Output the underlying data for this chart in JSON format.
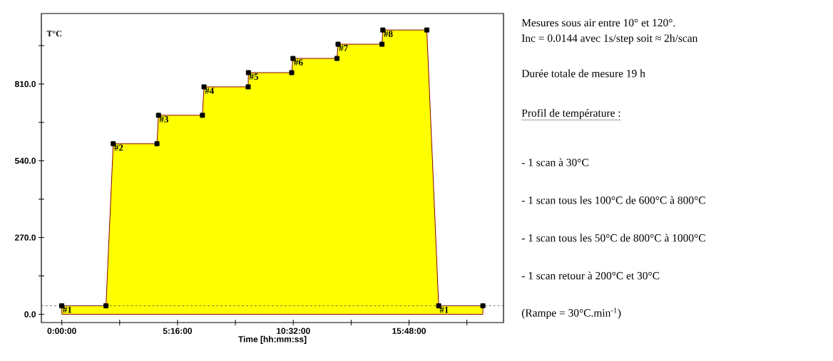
{
  "chart_data": {
    "type": "area",
    "xlabel": "Time  [hh:mm:ss]",
    "ylabel": "T°C",
    "x": [
      0,
      2.01,
      2.34,
      4.33,
      4.4,
      6.4,
      6.47,
      8.48,
      8.49,
      10.46,
      10.52,
      12.52,
      12.57,
      14.57,
      14.61,
      16.61,
      17.15,
      19.16
    ],
    "series": [
      {
        "color": "#ffff00",
        "values": [
          30,
          30,
          600,
          600,
          700,
          700,
          800,
          800,
          850,
          850,
          900,
          900,
          950,
          950,
          1000,
          1000,
          30,
          30
        ]
      }
    ],
    "marker": "square",
    "xlim": [
      -0.93,
      20.1
    ],
    "ylim": [
      -29,
      1058
    ],
    "xticks": [
      {
        "value": 0,
        "label": "0:00:00"
      },
      {
        "value": 2.6333,
        "label": null
      },
      {
        "value": 5.2667,
        "label": "5:16:00"
      },
      {
        "value": 7.9,
        "label": null
      },
      {
        "value": 10.5333,
        "label": "10:32:00"
      },
      {
        "value": 13.1667,
        "label": null
      },
      {
        "value": 15.8,
        "label": "15:48:00"
      },
      {
        "value": 18.4333,
        "label": null
      }
    ],
    "yticks": [
      {
        "value": 0,
        "label": "0.0"
      },
      {
        "value": 135,
        "label": null
      },
      {
        "value": 270,
        "label": "270.0"
      },
      {
        "value": 405,
        "label": null
      },
      {
        "value": 540,
        "label": "540.0"
      },
      {
        "value": 675,
        "label": null
      },
      {
        "value": 810,
        "label": "810.0"
      },
      {
        "value": 945,
        "label": null
      }
    ],
    "ref_lines": [
      {
        "axis": "y",
        "value": 30,
        "color": "#555555",
        "line_style": "dashed"
      }
    ],
    "annotations": [
      {
        "text": "#1",
        "x": 0,
        "y": 30
      },
      {
        "text": "#2",
        "x": 2.34,
        "y": 600
      },
      {
        "text": "#3",
        "x": 4.4,
        "y": 700
      },
      {
        "text": "#4",
        "x": 6.47,
        "y": 800
      },
      {
        "text": "#5",
        "x": 8.49,
        "y": 850
      },
      {
        "text": "#6",
        "x": 10.52,
        "y": 900
      },
      {
        "text": "#7",
        "x": 12.57,
        "y": 950
      },
      {
        "text": "#8",
        "x": 14.61,
        "y": 1000
      },
      {
        "text": "#1",
        "x": 17.15,
        "y": 30
      },
      "Mesures sous air entre 10° et 120°.",
      "Inc = 0.0144 avec 1s/step soit ≈ 2h/scan",
      "Durée totale de mesure 19 h",
      "Profil de température :",
      "- 1 scan à 30°C",
      "- 1 scan tous les 100°C de 600°C à 800°C",
      "- 1 scan tous les 50°C de 800°C à 1000°C",
      "- 1 scan retour à 200°C et 30°C",
      "(Rampe = 30°C.min$^{-1}$)"
    ]
  }
}
